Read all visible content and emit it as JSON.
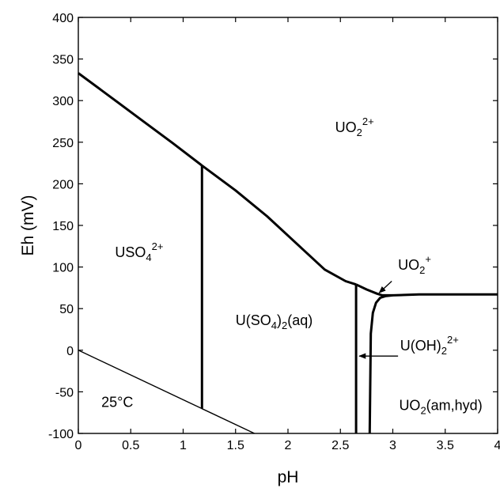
{
  "chart_data": {
    "type": "line",
    "title": "",
    "xlabel": "pH",
    "ylabel": "Eh (mV)",
    "xlim": [
      0,
      4
    ],
    "ylim": [
      -100,
      400
    ],
    "xticks": [
      "0",
      "0.5",
      "1",
      "1.5",
      "2",
      "2.5",
      "3",
      "3.5",
      "4"
    ],
    "yticks": [
      "-100",
      "-50",
      "0",
      "50",
      "100",
      "150",
      "200",
      "250",
      "300",
      "350",
      "400"
    ],
    "grid": false,
    "legend": "none",
    "series": [
      {
        "x": [
          0,
          0.3,
          0.6,
          0.9,
          1.18
        ],
        "y": [
          333,
          305,
          277,
          249,
          222
        ]
      },
      {
        "x": [
          1.18,
          1.5,
          1.8,
          2.1,
          2.35,
          2.55,
          2.65
        ],
        "y": [
          222,
          192,
          161,
          126,
          97,
          83,
          79
        ]
      },
      {
        "x": [
          2.65,
          2.75,
          2.85,
          2.9,
          2.95,
          3.0
        ],
        "y": [
          79,
          73,
          68,
          66,
          66,
          66
        ]
      },
      {
        "x": [
          3.0,
          3.25,
          3.5,
          4.0
        ],
        "y": [
          66,
          67,
          67,
          67
        ]
      },
      {
        "x": [
          1.18,
          1.18
        ],
        "y": [
          222,
          -70
        ]
      },
      {
        "x": [
          2.65,
          2.65
        ],
        "y": [
          79,
          -100
        ]
      },
      {
        "x": [
          2.78,
          2.79,
          2.81,
          2.84,
          2.88,
          2.93,
          3.0
        ],
        "y": [
          -100,
          20,
          45,
          57,
          63,
          65,
          66
        ]
      },
      {
        "x": [
          0,
          1.68
        ],
        "y": [
          0,
          -100
        ]
      }
    ],
    "annotations": [
      {
        "main": "UO",
        "sub": "2",
        "sup": "2+",
        "x": 2.45,
        "y": 262
      },
      {
        "main": "USO",
        "sub": "4",
        "sup": "2+",
        "x": 0.35,
        "y": 112
      },
      {
        "main": "U(SO",
        "sub": "4",
        "tail": ")",
        "sub2": "2",
        "rest": "(aq)",
        "x": 1.5,
        "y": 30
      },
      {
        "main": "UO",
        "sub": "2",
        "sup": "+",
        "x": 3.05,
        "y": 97
      },
      {
        "main": "U(OH)",
        "sub": "2",
        "sup": "2+",
        "x": 3.07,
        "y": 0
      },
      {
        "main": "UO",
        "sub": "2",
        "rest": "(am,hyd)",
        "x": 3.06,
        "y": -72
      },
      {
        "text": "25°C",
        "x": 0.22,
        "y": -68
      }
    ]
  }
}
